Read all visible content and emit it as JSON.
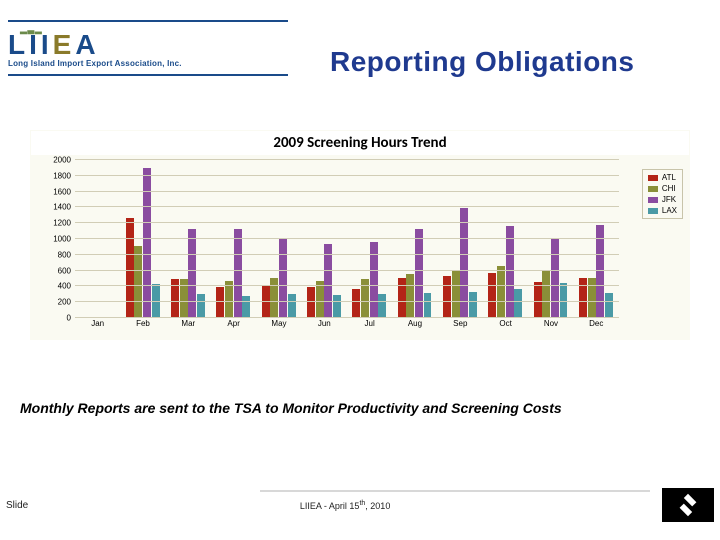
{
  "logo": {
    "tagline": "Long Island Import Export Association, Inc.",
    "letters": [
      "L",
      "I",
      "I",
      "E",
      "A"
    ]
  },
  "title": "Reporting Obligations",
  "chart": {
    "type": "bar",
    "title": "2009 Screening Hours Trend",
    "background_color": "#fafaf2",
    "grid_color": "#d1cdb6",
    "title_fontsize": 15,
    "label_fontsize": 8,
    "ymin": 0,
    "ymax": 2000,
    "ytick_step": 200,
    "months": [
      "Jan",
      "Feb",
      "Mar",
      "Apr",
      "May",
      "Jun",
      "Jul",
      "Aug",
      "Sep",
      "Oct",
      "Nov",
      "Dec"
    ],
    "series": [
      {
        "name": "ATL",
        "color": "#b32417",
        "values": [
          0,
          1250,
          480,
          380,
          410,
          380,
          360,
          500,
          520,
          560,
          440,
          490
        ]
      },
      {
        "name": "CHI",
        "color": "#8a8f38",
        "values": [
          0,
          900,
          480,
          460,
          500,
          460,
          480,
          540,
          580,
          640,
          600,
          500
        ]
      },
      {
        "name": "JFK",
        "color": "#8a4ca0",
        "values": [
          0,
          1880,
          1110,
          1110,
          1000,
          920,
          950,
          1110,
          1380,
          1150,
          1000,
          1160
        ]
      },
      {
        "name": "LAX",
        "color": "#4a9aa6",
        "values": [
          0,
          420,
          290,
          270,
          290,
          280,
          290,
          300,
          320,
          360,
          430,
          310
        ]
      }
    ],
    "legend_position": "top-right"
  },
  "caption": "Monthly Reports are sent to the TSA to Monitor Productivity and Screening Costs",
  "footer": {
    "slide_label": "Slide",
    "center_text": "LIIEA - April 15th, 2010",
    "center_html": "LIIEA - April 15<sup>th</sup>, 2010"
  }
}
